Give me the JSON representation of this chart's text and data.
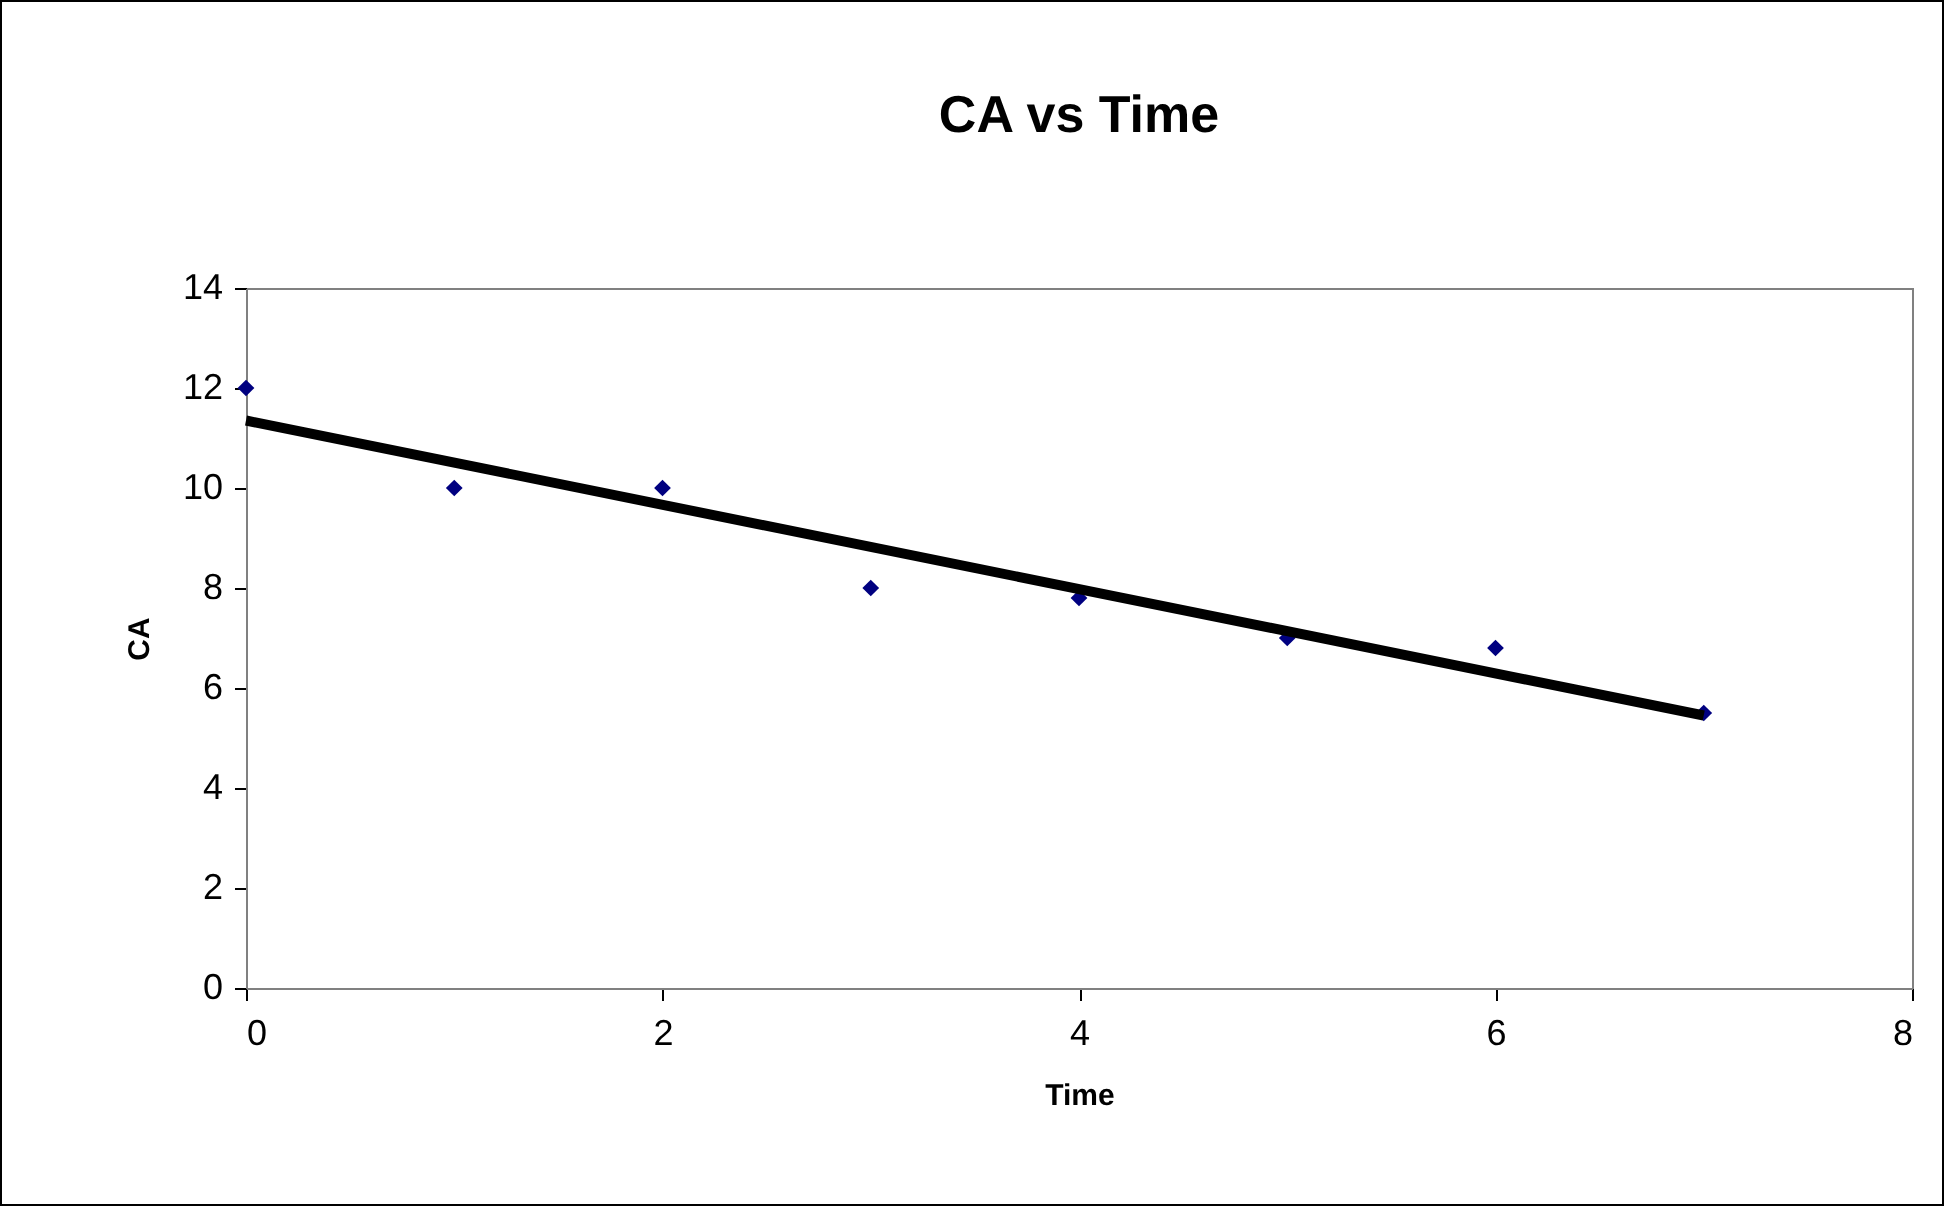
{
  "chart_data": {
    "type": "scatter",
    "title": "CA  vs  Time",
    "xlabel": "Time",
    "ylabel": "CA",
    "xlim": [
      0,
      8
    ],
    "xticks": [
      0,
      2,
      4,
      6,
      8
    ],
    "ylim": [
      0,
      14
    ],
    "yticks": [
      0,
      2,
      4,
      6,
      8,
      10,
      12,
      14
    ],
    "grid": false,
    "marker": "diamond",
    "series": [
      {
        "color": "#000080",
        "x": [
          0,
          1,
          2,
          3,
          4,
          5,
          6,
          7
        ],
        "values": [
          12,
          10,
          10,
          8,
          7.8,
          7,
          6.8,
          5.5
        ]
      },
      {
        "type": "line",
        "color": "#000000",
        "x": [
          0,
          7
        ],
        "values": [
          11.35,
          5.45
        ],
        "line_style": "solid",
        "marker": "none"
      }
    ]
  }
}
